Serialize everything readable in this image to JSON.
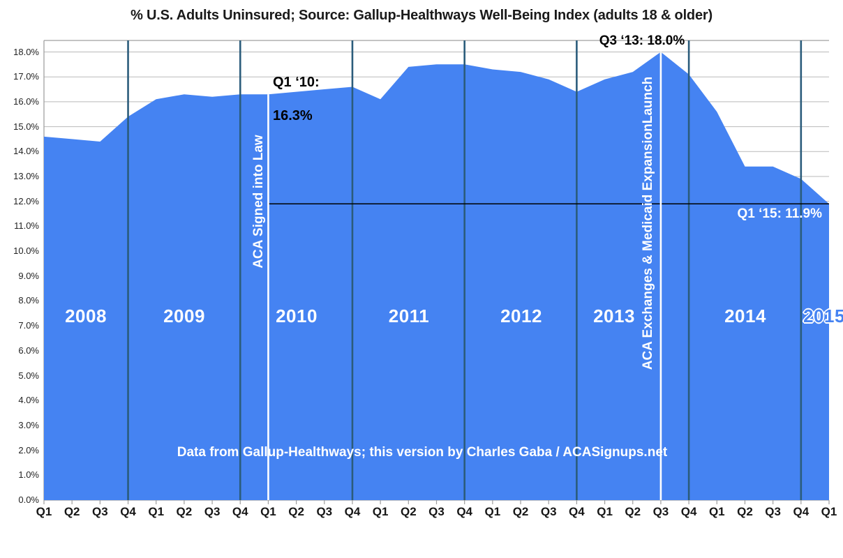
{
  "title": "% U.S. Adults Uninsured; Source: Gallup-Healthways Well-Being Index (adults 18 & older)",
  "credit": "Data from Gallup-Healthways; this version by Charles Gaba / ACASignups.net",
  "years": [
    "2008",
    "2009",
    "2010",
    "2011",
    "2012",
    "2013",
    "2014",
    "2015"
  ],
  "annotations": {
    "q1_2010": {
      "line1": "Q1 ‘10:",
      "line2": "16.3%"
    },
    "q3_2013": "Q3 ‘13: 18.0%",
    "q1_2015": "Q1 ‘15: 11.9%"
  },
  "event_lines": [
    {
      "quarter": "Q1 2010",
      "index": 8,
      "label": "ACA Signed into Law"
    },
    {
      "quarter": "Q3 2013",
      "index": 22,
      "label": "ACA Exchanges & Medicaid ExpansionLaunch"
    }
  ],
  "colors": {
    "area_blue": "#4583f2",
    "year_divider": "#2b5c7b",
    "event_line": "#ffffff",
    "gridline": "#b9b9b9",
    "axis_border": "#a0a0a0",
    "tick": "#9e9e9e",
    "reference_line": "#000000",
    "text_dark": "#1a1a1a",
    "text_white": "#ffffff"
  },
  "chart_data": {
    "type": "area",
    "title": "% U.S. Adults Uninsured; Source: Gallup-Healthways Well-Being Index (adults 18 & older)",
    "xlabel": "",
    "ylabel": "",
    "ylim": [
      0,
      18
    ],
    "y_tick_step": 1.0,
    "grid": true,
    "y_tick_labels": [
      "0.0%",
      "1.0%",
      "2.0%",
      "3.0%",
      "4.0%",
      "5.0%",
      "6.0%",
      "7.0%",
      "8.0%",
      "9.0%",
      "10.0%",
      "11.0%",
      "12.0%",
      "13.0%",
      "14.0%",
      "15.0%",
      "16.0%",
      "17.0%",
      "18.0%"
    ],
    "x_tick_labels": [
      "Q1",
      "Q2",
      "Q3",
      "Q4",
      "Q1",
      "Q2",
      "Q3",
      "Q4",
      "Q1",
      "Q2",
      "Q3",
      "Q4",
      "Q1",
      "Q2",
      "Q3",
      "Q4",
      "Q1",
      "Q2",
      "Q3",
      "Q4",
      "Q1",
      "Q2",
      "Q3",
      "Q4",
      "Q1",
      "Q2",
      "Q3",
      "Q4",
      "Q1"
    ],
    "quarters": [
      "Q1 2008",
      "Q2 2008",
      "Q3 2008",
      "Q4 2008",
      "Q1 2009",
      "Q2 2009",
      "Q3 2009",
      "Q4 2009",
      "Q1 2010",
      "Q2 2010",
      "Q3 2010",
      "Q4 2010",
      "Q1 2011",
      "Q2 2011",
      "Q3 2011",
      "Q4 2011",
      "Q1 2012",
      "Q2 2012",
      "Q3 2012",
      "Q4 2012",
      "Q1 2013",
      "Q2 2013",
      "Q3 2013",
      "Q4 2013",
      "Q1 2014",
      "Q2 2014",
      "Q3 2014",
      "Q4 2014",
      "Q1 2015"
    ],
    "series": [
      {
        "name": "% U.S. adults uninsured",
        "values": [
          14.6,
          14.5,
          14.4,
          15.4,
          16.1,
          16.3,
          16.2,
          16.3,
          16.3,
          16.4,
          16.5,
          16.6,
          16.1,
          17.4,
          17.5,
          17.5,
          17.3,
          17.2,
          16.9,
          16.4,
          16.9,
          17.2,
          18.0,
          17.1,
          15.6,
          13.4,
          13.4,
          12.9,
          11.9
        ]
      }
    ],
    "year_divider_quarters": [
      "Q4 2008",
      "Q4 2009",
      "Q4 2010",
      "Q4 2011",
      "Q4 2012",
      "Q4 2013",
      "Q4 2014"
    ],
    "year_divider_indices": [
      3,
      7,
      11,
      15,
      19,
      23,
      27
    ],
    "reference_line": {
      "value": 11.9,
      "starts_at_quarter": "Q1 2010",
      "start_index": 8
    },
    "annotated_points": [
      {
        "quarter": "Q1 2010",
        "value": 16.3
      },
      {
        "quarter": "Q3 2013",
        "value": 18.0
      },
      {
        "quarter": "Q1 2015",
        "value": 11.9
      }
    ],
    "legend_position": "none"
  }
}
